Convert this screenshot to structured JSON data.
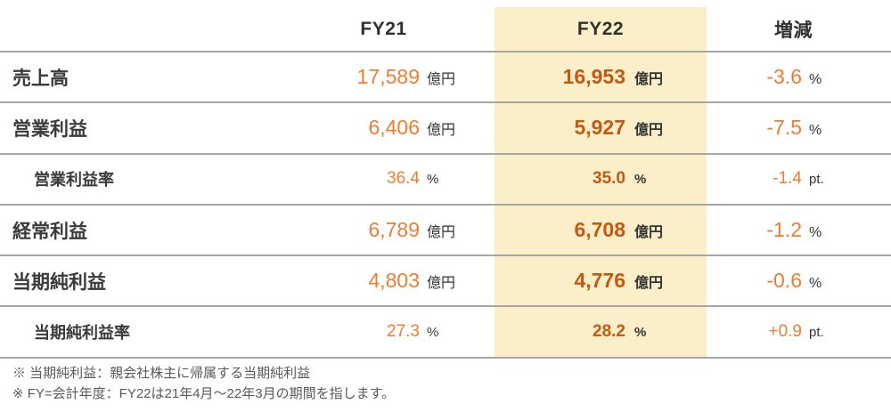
{
  "table": {
    "headers": {
      "fy21": "FY21",
      "fy22": "FY22",
      "delta": "増減"
    },
    "rows": [
      {
        "label": "売上高",
        "fy21": {
          "value": "17,589",
          "unit": "億円"
        },
        "fy22": {
          "value": "16,953",
          "unit": "億円"
        },
        "delta": {
          "value": "-3.6",
          "unit": "%"
        }
      },
      {
        "label": "営業利益",
        "fy21": {
          "value": "6,406",
          "unit": "億円"
        },
        "fy22": {
          "value": "5,927",
          "unit": "億円"
        },
        "delta": {
          "value": "-7.5",
          "unit": "%"
        }
      },
      {
        "label": "営業利益率",
        "fy21": {
          "value": "36.4",
          "unit": "%"
        },
        "fy22": {
          "value": "35.0",
          "unit": "%"
        },
        "delta": {
          "value": "-1.4",
          "unit": "pt."
        }
      },
      {
        "label": "経常利益",
        "fy21": {
          "value": "6,789",
          "unit": "億円"
        },
        "fy22": {
          "value": "6,708",
          "unit": "億円"
        },
        "delta": {
          "value": "-1.2",
          "unit": "%"
        }
      },
      {
        "label": "当期純利益",
        "fy21": {
          "value": "4,803",
          "unit": "億円"
        },
        "fy22": {
          "value": "4,776",
          "unit": "億円"
        },
        "delta": {
          "value": "-0.6",
          "unit": "%"
        }
      },
      {
        "label": "当期純利益率",
        "fy21": {
          "value": "27.3",
          "unit": "%"
        },
        "fy22": {
          "value": "28.2",
          "unit": "%"
        },
        "delta": {
          "value": "+0.9",
          "unit": "pt."
        }
      }
    ]
  },
  "footnotes": [
    "※ 当期純利益：親会社株主に帰属する当期純利益",
    "※ FY=会計年度：FY22は21年4月～22年3月の期間を指します。"
  ],
  "colors": {
    "value_orange": "#ED7D31",
    "fy22_dark_orange": "#C45911",
    "fy22_band": "#FBEFC9",
    "rule_line": "#A6A6A6",
    "label_text": "#3A3A3A",
    "footnote_text": "#595959"
  }
}
